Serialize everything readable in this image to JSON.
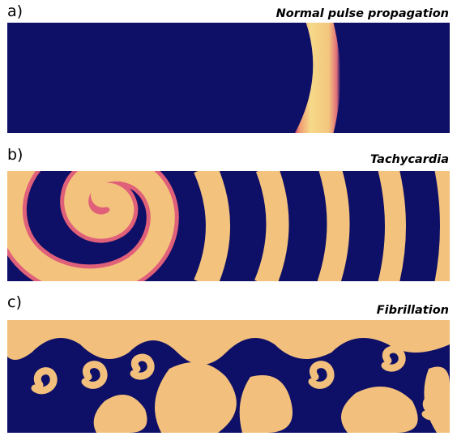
{
  "panels": [
    {
      "letter": "a)",
      "title": "Normal pulse propagation"
    },
    {
      "letter": "b)",
      "title": "Tachycardia"
    },
    {
      "letter": "c)",
      "title": "Fibrillation"
    }
  ],
  "colors": {
    "rest": "#0e0f66",
    "front": "#d6406e",
    "mid": "#f3a072",
    "peak": "#f6e28e",
    "label_text": "#000000"
  }
}
